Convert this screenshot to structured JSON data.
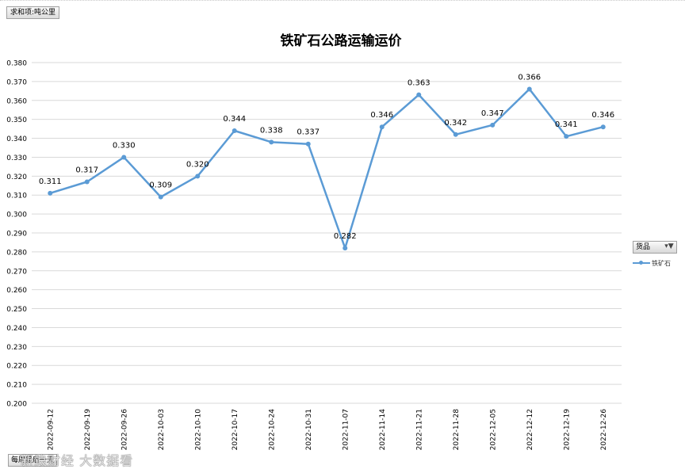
{
  "field_button": "求和项:吨公里",
  "bottom_button": "每周最后一天",
  "watermark": "新浪财经 大数据看",
  "legend": {
    "header": "货品",
    "filter_icon": "filter-dropdown-icon",
    "series_label": "铁矿石"
  },
  "colors": {
    "series": "#5b9bd5",
    "grid": "#d9d9d9",
    "title": "#000000"
  },
  "chart_data": {
    "type": "line",
    "title": "铁矿石公路运输运价",
    "xlabel": "",
    "ylabel": "",
    "ylim": [
      0.2,
      0.38
    ],
    "ytick_step": 0.01,
    "grid": "horizontal",
    "legend_position": "right",
    "categories": [
      "2022-09-12",
      "2022-09-19",
      "2022-09-26",
      "2022-10-03",
      "2022-10-10",
      "2022-10-17",
      "2022-10-24",
      "2022-10-31",
      "2022-11-07",
      "2022-11-14",
      "2022-11-21",
      "2022-11-28",
      "2022-12-05",
      "2022-12-12",
      "2022-12-19",
      "2022-12-26"
    ],
    "series": [
      {
        "name": "铁矿石",
        "values": [
          0.311,
          0.317,
          0.33,
          0.309,
          0.32,
          0.344,
          0.338,
          0.337,
          0.282,
          0.346,
          0.363,
          0.342,
          0.347,
          0.366,
          0.341,
          0.346
        ]
      }
    ]
  }
}
